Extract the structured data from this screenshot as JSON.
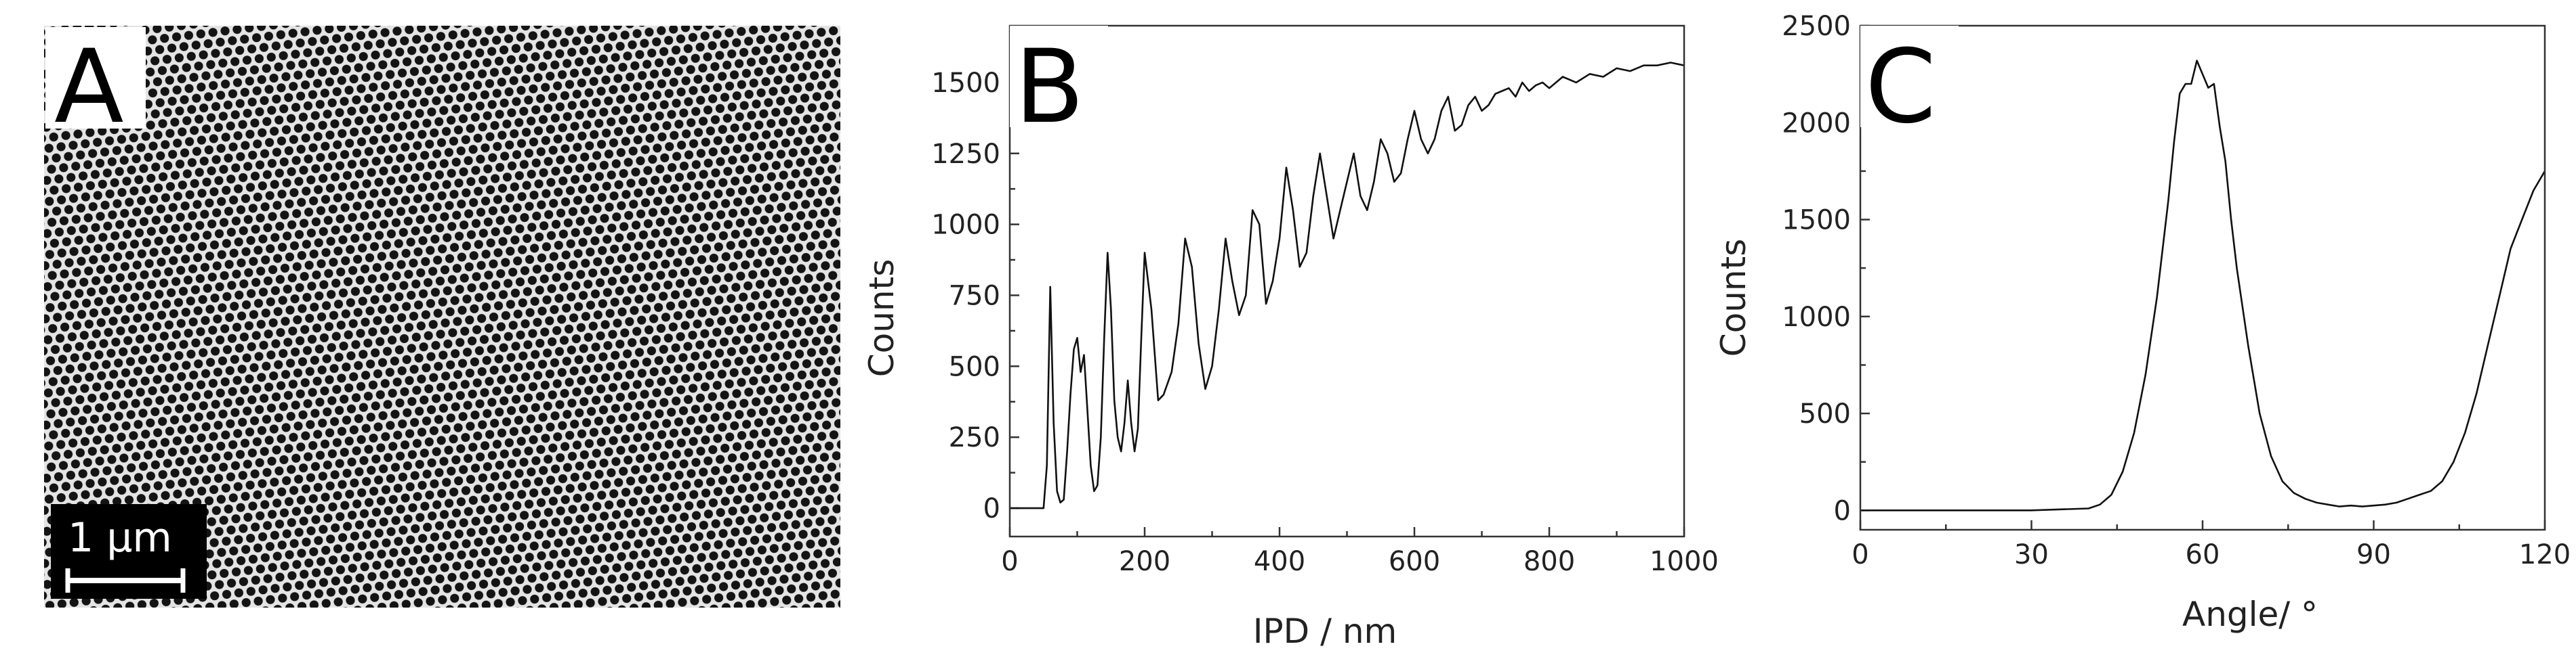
{
  "panels": {
    "a": {
      "label": "A",
      "scale_bar_label": "1 μm"
    },
    "b": {
      "label": "B"
    },
    "c": {
      "label": "C"
    }
  },
  "chart_data": [
    {
      "panel": "B",
      "type": "line",
      "title": "",
      "xlabel": "IPD / nm",
      "ylabel": "Counts",
      "xlim": [
        0,
        1000
      ],
      "ylim": [
        -100,
        1700
      ],
      "xticks": [
        0,
        200,
        400,
        600,
        800,
        1000
      ],
      "yticks": [
        0,
        250,
        500,
        750,
        1000,
        1250,
        1500
      ],
      "grid": false,
      "series": [
        {
          "x": [
            0,
            50,
            55,
            60,
            65,
            70,
            75,
            80,
            85,
            90,
            95,
            100,
            105,
            110,
            115,
            120,
            125,
            130,
            135,
            140,
            145,
            150,
            155,
            160,
            165,
            170,
            175,
            180,
            185,
            190,
            195,
            200,
            210,
            220,
            228,
            240,
            250,
            260,
            270,
            280,
            290,
            300,
            310,
            320,
            330,
            340,
            350,
            360,
            370,
            380,
            390,
            400,
            410,
            420,
            430,
            440,
            450,
            460,
            470,
            480,
            490,
            500,
            510,
            520,
            530,
            540,
            550,
            560,
            570,
            580,
            590,
            600,
            610,
            620,
            630,
            640,
            650,
            660,
            670,
            680,
            690,
            700,
            710,
            720,
            730,
            740,
            750,
            760,
            770,
            780,
            790,
            800,
            820,
            840,
            860,
            880,
            900,
            920,
            940,
            960,
            980,
            1000
          ],
          "y": [
            0,
            0,
            150,
            780,
            300,
            60,
            20,
            30,
            200,
            400,
            560,
            600,
            480,
            540,
            350,
            150,
            60,
            80,
            250,
            600,
            900,
            700,
            380,
            250,
            200,
            300,
            450,
            300,
            200,
            280,
            600,
            900,
            700,
            380,
            400,
            480,
            650,
            950,
            850,
            580,
            420,
            500,
            700,
            950,
            800,
            680,
            750,
            1050,
            1000,
            720,
            800,
            950,
            1200,
            1050,
            850,
            900,
            1100,
            1250,
            1100,
            950,
            1050,
            1150,
            1250,
            1100,
            1050,
            1150,
            1300,
            1250,
            1150,
            1180,
            1300,
            1400,
            1300,
            1250,
            1300,
            1400,
            1450,
            1330,
            1350,
            1420,
            1450,
            1400,
            1420,
            1460,
            1470,
            1480,
            1450,
            1500,
            1470,
            1490,
            1500,
            1480,
            1520,
            1500,
            1530,
            1520,
            1550,
            1540,
            1560,
            1560,
            1570,
            1560
          ]
        }
      ]
    },
    {
      "panel": "C",
      "type": "line",
      "title": "",
      "xlabel": "Angle/ °",
      "ylabel": "Counts",
      "xlim": [
        0,
        120
      ],
      "ylim": [
        -100,
        2500
      ],
      "xticks": [
        0,
        30,
        60,
        90,
        120
      ],
      "yticks": [
        0,
        500,
        1000,
        1500,
        2000,
        2500
      ],
      "grid": false,
      "series": [
        {
          "x": [
            0,
            10,
            20,
            30,
            40,
            42,
            44,
            46,
            48,
            50,
            52,
            54,
            55,
            56,
            57,
            58,
            59,
            60,
            61,
            62,
            63,
            64,
            65,
            66,
            68,
            70,
            72,
            74,
            76,
            78,
            80,
            82,
            84,
            86,
            88,
            90,
            92,
            94,
            96,
            98,
            100,
            102,
            104,
            106,
            108,
            110,
            112,
            114,
            116,
            118,
            120
          ],
          "y": [
            0,
            0,
            0,
            0,
            10,
            30,
            80,
            200,
            400,
            700,
            1100,
            1600,
            1900,
            2150,
            2200,
            2200,
            2320,
            2250,
            2180,
            2200,
            1980,
            1800,
            1500,
            1250,
            850,
            500,
            280,
            150,
            90,
            60,
            40,
            30,
            20,
            25,
            20,
            25,
            30,
            40,
            60,
            80,
            100,
            150,
            250,
            400,
            600,
            850,
            1100,
            1350,
            1500,
            1650,
            1750
          ]
        }
      ]
    }
  ]
}
